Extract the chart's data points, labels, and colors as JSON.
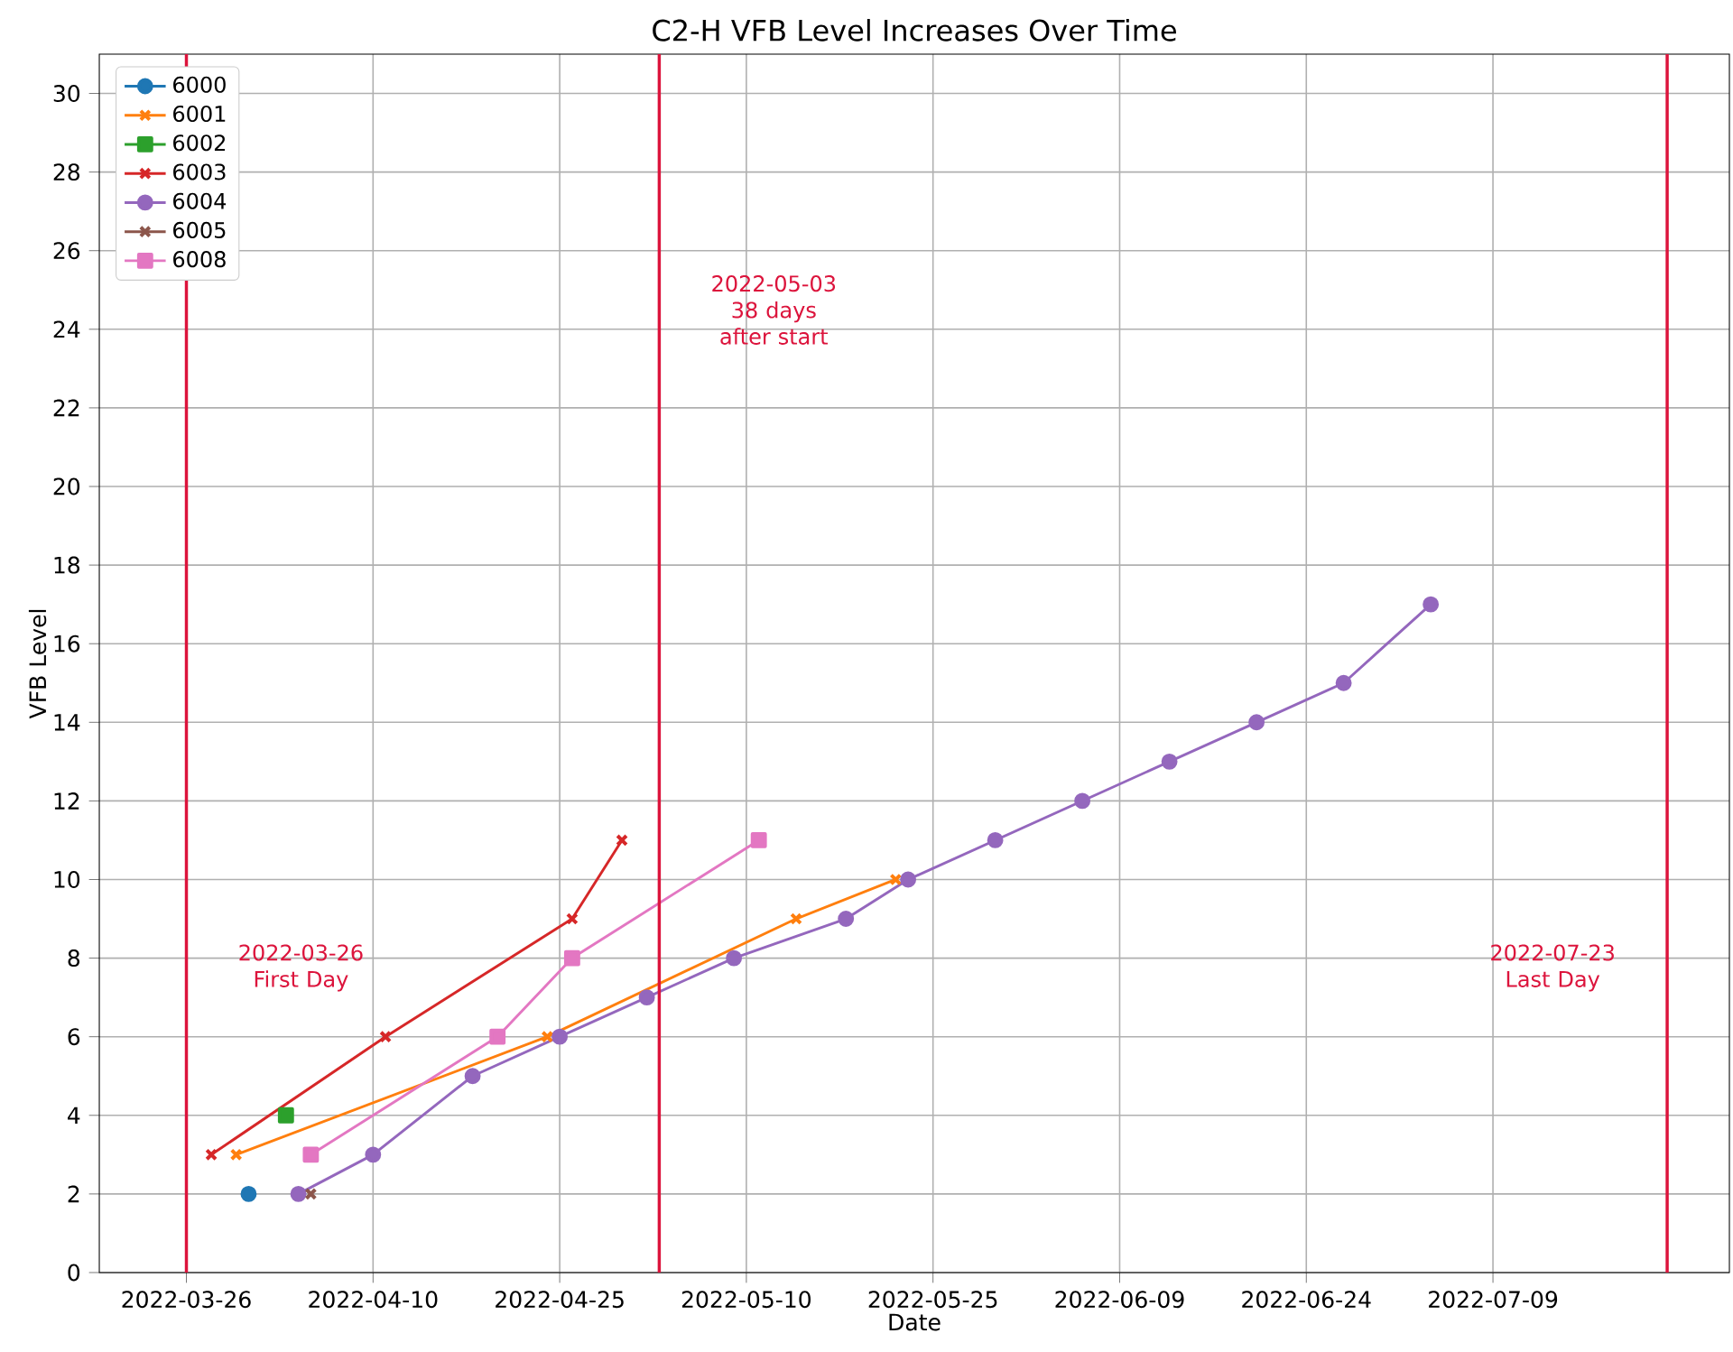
{
  "chart_data": {
    "type": "line",
    "title": "C2-H VFB Level Increases Over Time",
    "xlabel": "Date",
    "ylabel": "VFB Level",
    "xlim": [
      "2022-03-19",
      "2022-07-28"
    ],
    "xticks": [
      "2022-03-26",
      "2022-04-10",
      "2022-04-25",
      "2022-05-10",
      "2022-05-25",
      "2022-06-09",
      "2022-06-24",
      "2022-07-09"
    ],
    "ylim": [
      0,
      31
    ],
    "yticks": [
      0,
      2,
      4,
      6,
      8,
      10,
      12,
      14,
      16,
      18,
      20,
      22,
      24,
      26,
      28,
      30
    ],
    "grid": true,
    "legend": "top left",
    "series": [
      {
        "name": "6000",
        "color": "#1f77b4",
        "marker": "circle",
        "x": [
          "2022-03-31"
        ],
        "values": [
          2
        ]
      },
      {
        "name": "6001",
        "color": "#ff7f0e",
        "marker": "cross",
        "x": [
          "2022-03-30",
          "2022-04-24",
          "2022-05-14",
          "2022-05-22"
        ],
        "values": [
          3,
          6,
          9,
          10
        ]
      },
      {
        "name": "6002",
        "color": "#2ca02c",
        "marker": "square",
        "x": [
          "2022-04-03"
        ],
        "values": [
          4
        ]
      },
      {
        "name": "6003",
        "color": "#d62728",
        "marker": "cross",
        "x": [
          "2022-03-28",
          "2022-04-11",
          "2022-04-26",
          "2022-04-30"
        ],
        "values": [
          3,
          6,
          9,
          11
        ]
      },
      {
        "name": "6004",
        "color": "#9467bd",
        "marker": "circle",
        "x": [
          "2022-04-04",
          "2022-04-10",
          "2022-04-18",
          "2022-04-25",
          "2022-05-02",
          "2022-05-09",
          "2022-05-18",
          "2022-05-23",
          "2022-05-30",
          "2022-06-06",
          "2022-06-13",
          "2022-06-20",
          "2022-06-27",
          "2022-07-04"
        ],
        "values": [
          2,
          3,
          5,
          6,
          7,
          8,
          9,
          10,
          11,
          12,
          13,
          14,
          15,
          17
        ]
      },
      {
        "name": "6005",
        "color": "#8c564b",
        "marker": "cross",
        "x": [
          "2022-04-05"
        ],
        "values": [
          2
        ]
      },
      {
        "name": "6008",
        "color": "#e377c2",
        "marker": "square",
        "x": [
          "2022-04-05",
          "2022-04-20",
          "2022-04-26",
          "2022-05-11"
        ],
        "values": [
          3,
          6,
          8,
          11
        ]
      }
    ],
    "ref_lines": [
      {
        "axis": "x",
        "value": "2022-03-26",
        "color": "#dc143c",
        "label": "2022-03-26\nFirst Day"
      },
      {
        "axis": "x",
        "value": "2022-05-03",
        "color": "#dc143c",
        "label": "2022-05-03\n38 days after start"
      },
      {
        "axis": "x",
        "value": "2022-07-23",
        "color": "#dc143c",
        "label": "2022-07-23\nLast Day"
      }
    ]
  }
}
